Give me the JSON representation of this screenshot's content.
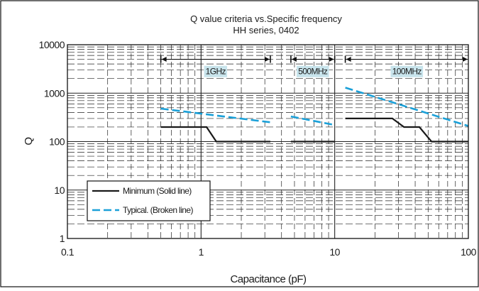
{
  "chart_data": {
    "type": "line",
    "title": "Q value criteria vs.Specific frequency",
    "subtitle": "HH series, 0402",
    "xlabel": "Capacitance (pF)",
    "ylabel": "Q",
    "x_scale": "log",
    "y_scale": "log",
    "xlim": [
      0.1,
      100
    ],
    "ylim": [
      1,
      10000
    ],
    "x_ticks": [
      "0.1",
      "1",
      "10",
      "100"
    ],
    "y_ticks": [
      "10000",
      "1000",
      "100",
      "10",
      "1"
    ],
    "grid": true,
    "legend_position": "bottom-left",
    "colors": {
      "minimum": "#1a1a1a",
      "typical": "#1aa0d8",
      "band_label_bg": "#c8e4ec",
      "grid": "#222222"
    },
    "bands": [
      {
        "label": "1GHz",
        "x_range": [
          0.5,
          3.3
        ]
      },
      {
        "label": "500MHz",
        "x_range": [
          4.7,
          10
        ]
      },
      {
        "label": "100MHz",
        "x_range": [
          12,
          100
        ]
      }
    ],
    "legend": [
      {
        "label": "Minimum (Solid line)",
        "style": "solid"
      },
      {
        "label": "Typical. (Broken line)",
        "style": "dashed"
      }
    ],
    "series": [
      {
        "name": "Minimum (Solid line)",
        "band": "1GHz",
        "style": "solid",
        "x": [
          0.5,
          1.1,
          1.3,
          3.3
        ],
        "y": [
          200,
          200,
          100,
          100
        ]
      },
      {
        "name": "Minimum (Solid line)",
        "band": "500MHz",
        "style": "solid",
        "x": [
          4.7,
          10
        ],
        "y": [
          100,
          100
        ]
      },
      {
        "name": "Minimum (Solid line)",
        "band": "100MHz",
        "style": "solid",
        "x": [
          12,
          27,
          33,
          43,
          53,
          100
        ],
        "y": [
          300,
          300,
          200,
          200,
          100,
          100
        ]
      },
      {
        "name": "Typical. (Broken line)",
        "band": "1GHz",
        "style": "dashed",
        "x": [
          0.5,
          3.3
        ],
        "y": [
          480,
          250
        ]
      },
      {
        "name": "Typical. (Broken line)",
        "band": "500MHz",
        "style": "dashed",
        "x": [
          4.7,
          10
        ],
        "y": [
          330,
          220
        ]
      },
      {
        "name": "Typical. (Broken line)",
        "band": "100MHz",
        "style": "dashed",
        "x": [
          12,
          100
        ],
        "y": [
          1300,
          210
        ]
      }
    ]
  }
}
